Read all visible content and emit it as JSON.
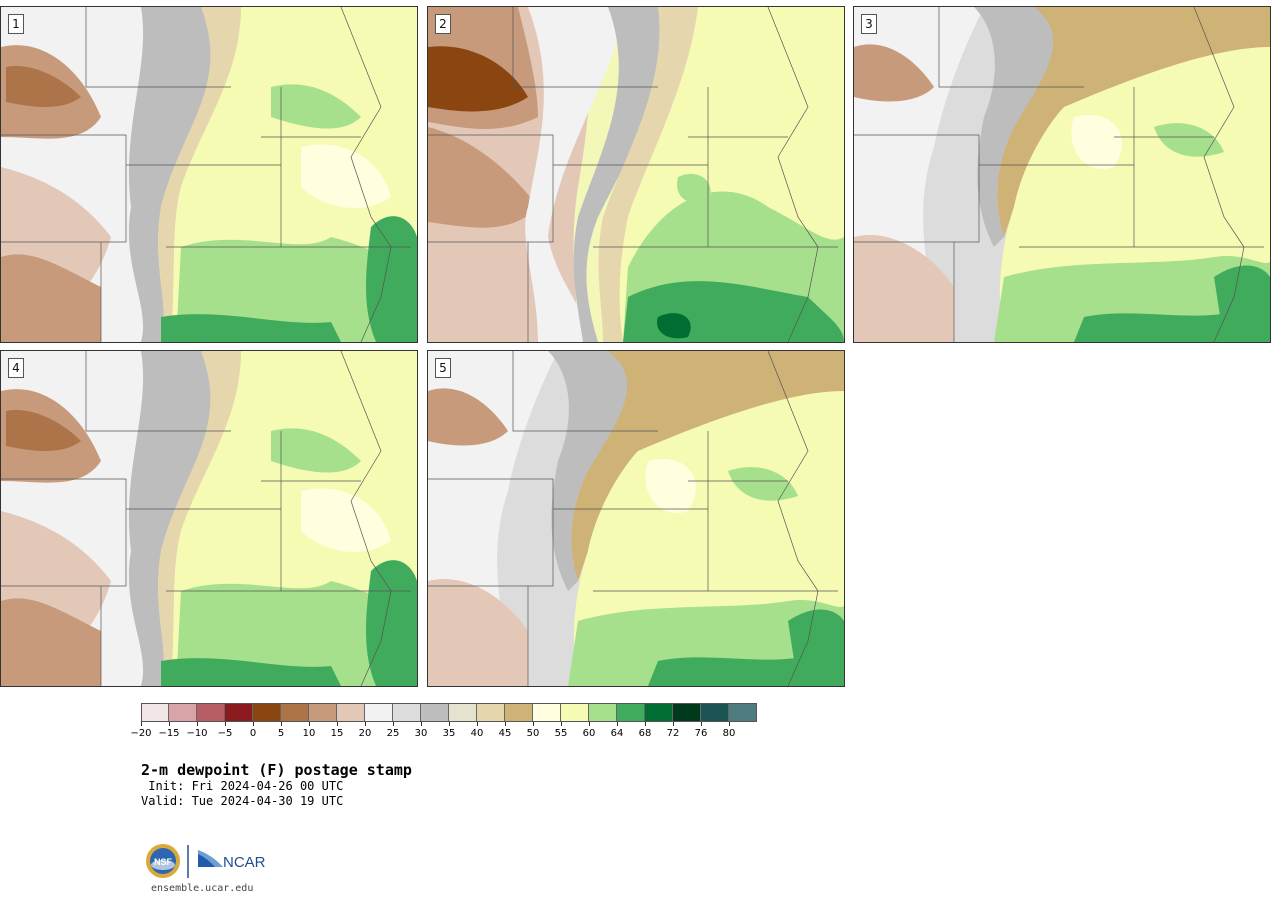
{
  "members": [
    {
      "label": "1",
      "theme": "dry-west"
    },
    {
      "label": "2",
      "theme": "dry-northwest"
    },
    {
      "label": "3",
      "theme": "gray-north"
    },
    {
      "label": "4",
      "theme": "dry-west"
    },
    {
      "label": "5",
      "theme": "gray-north"
    }
  ],
  "colorbar": {
    "colors": [
      "#f3e6e6",
      "#d8a4a8",
      "#b65e64",
      "#8b1a1e",
      "#8a4510",
      "#ad744a",
      "#c79a7c",
      "#e3c8b8",
      "#f2f2f2",
      "#dcdcdc",
      "#bdbdbd",
      "#e6e2d0",
      "#e6d6ad",
      "#ceb276",
      "#ffffe0",
      "#f6fbb4",
      "#a6e08c",
      "#41ab5d",
      "#006d32",
      "#00391c",
      "#1c5454",
      "#4d7b80"
    ],
    "ticks": [
      "−20",
      "−15",
      "−10",
      "−5",
      "0",
      "5",
      "10",
      "15",
      "20",
      "25",
      "30",
      "35",
      "40",
      "45",
      "50",
      "55",
      "60",
      "64",
      "68",
      "72",
      "76",
      "80"
    ]
  },
  "title": "2-m dewpoint (F) postage stamp",
  "init": " Init: Fri 2024-04-26 00 UTC",
  "valid": "Valid: Tue 2024-04-30 19 UTC",
  "logos": {
    "nsf": "NSF",
    "ncar": "NCAR"
  },
  "site": "ensemble.ucar.edu"
}
